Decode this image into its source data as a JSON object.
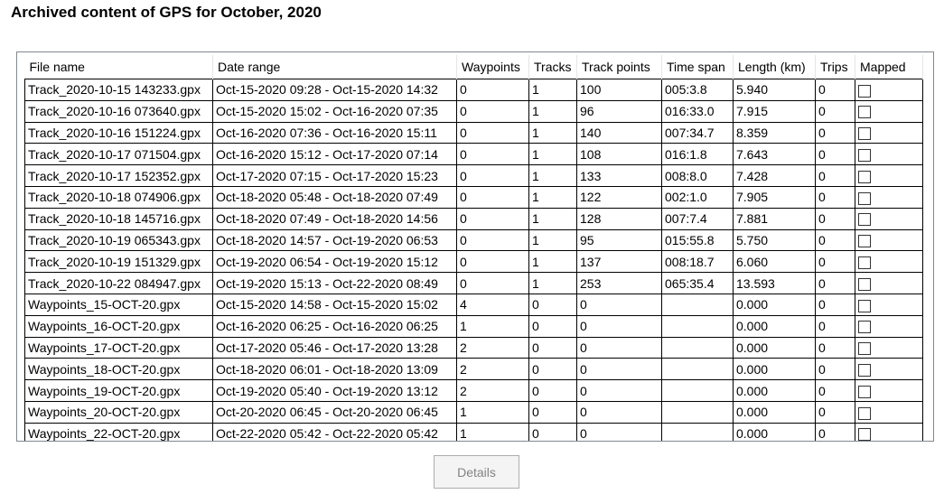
{
  "title": "Archived content of GPS for October, 2020",
  "columns": [
    "File name",
    "Date range",
    "Waypoints",
    "Tracks",
    "Track points",
    "Time span",
    "Length (km)",
    "Trips",
    "Mapped"
  ],
  "rows": [
    {
      "file": "Track_2020-10-15 143233.gpx",
      "range": "Oct-15-2020 09:28 - Oct-15-2020 14:32",
      "waypoints": "0",
      "tracks": "1",
      "points": "100",
      "span": "005:3.8",
      "length": "5.940",
      "trips": "0",
      "mapped": false
    },
    {
      "file": "Track_2020-10-16 073640.gpx",
      "range": "Oct-15-2020 15:02 - Oct-16-2020 07:35",
      "waypoints": "0",
      "tracks": "1",
      "points": "96",
      "span": "016:33.0",
      "length": "7.915",
      "trips": "0",
      "mapped": false
    },
    {
      "file": "Track_2020-10-16 151224.gpx",
      "range": "Oct-16-2020 07:36 - Oct-16-2020 15:11",
      "waypoints": "0",
      "tracks": "1",
      "points": "140",
      "span": "007:34.7",
      "length": "8.359",
      "trips": "0",
      "mapped": false
    },
    {
      "file": "Track_2020-10-17 071504.gpx",
      "range": "Oct-16-2020 15:12 - Oct-17-2020 07:14",
      "waypoints": "0",
      "tracks": "1",
      "points": "108",
      "span": "016:1.8",
      "length": "7.643",
      "trips": "0",
      "mapped": false
    },
    {
      "file": "Track_2020-10-17 152352.gpx",
      "range": "Oct-17-2020 07:15 - Oct-17-2020 15:23",
      "waypoints": "0",
      "tracks": "1",
      "points": "133",
      "span": "008:8.0",
      "length": "7.428",
      "trips": "0",
      "mapped": false
    },
    {
      "file": "Track_2020-10-18 074906.gpx",
      "range": "Oct-18-2020 05:48 - Oct-18-2020 07:49",
      "waypoints": "0",
      "tracks": "1",
      "points": "122",
      "span": "002:1.0",
      "length": "7.905",
      "trips": "0",
      "mapped": false
    },
    {
      "file": "Track_2020-10-18 145716.gpx",
      "range": "Oct-18-2020 07:49 - Oct-18-2020 14:56",
      "waypoints": "0",
      "tracks": "1",
      "points": "128",
      "span": "007:7.4",
      "length": "7.881",
      "trips": "0",
      "mapped": false
    },
    {
      "file": "Track_2020-10-19 065343.gpx",
      "range": "Oct-18-2020 14:57 - Oct-19-2020 06:53",
      "waypoints": "0",
      "tracks": "1",
      "points": "95",
      "span": "015:55.8",
      "length": "5.750",
      "trips": "0",
      "mapped": false
    },
    {
      "file": "Track_2020-10-19 151329.gpx",
      "range": "Oct-19-2020 06:54 - Oct-19-2020 15:12",
      "waypoints": "0",
      "tracks": "1",
      "points": "137",
      "span": "008:18.7",
      "length": "6.060",
      "trips": "0",
      "mapped": false
    },
    {
      "file": "Track_2020-10-22 084947.gpx",
      "range": "Oct-19-2020 15:13 - Oct-22-2020 08:49",
      "waypoints": "0",
      "tracks": "1",
      "points": "253",
      "span": "065:35.4",
      "length": "13.593",
      "trips": "0",
      "mapped": false
    },
    {
      "file": "Waypoints_15-OCT-20.gpx",
      "range": "Oct-15-2020 14:58 - Oct-15-2020 15:02",
      "waypoints": "4",
      "tracks": "0",
      "points": "0",
      "span": "",
      "length": "0.000",
      "trips": "0",
      "mapped": false
    },
    {
      "file": "Waypoints_16-OCT-20.gpx",
      "range": "Oct-16-2020 06:25 - Oct-16-2020 06:25",
      "waypoints": "1",
      "tracks": "0",
      "points": "0",
      "span": "",
      "length": "0.000",
      "trips": "0",
      "mapped": false
    },
    {
      "file": "Waypoints_17-OCT-20.gpx",
      "range": "Oct-17-2020 05:46 - Oct-17-2020 13:28",
      "waypoints": "2",
      "tracks": "0",
      "points": "0",
      "span": "",
      "length": "0.000",
      "trips": "0",
      "mapped": false
    },
    {
      "file": "Waypoints_18-OCT-20.gpx",
      "range": "Oct-18-2020 06:01 - Oct-18-2020 13:09",
      "waypoints": "2",
      "tracks": "0",
      "points": "0",
      "span": "",
      "length": "0.000",
      "trips": "0",
      "mapped": false
    },
    {
      "file": "Waypoints_19-OCT-20.gpx",
      "range": "Oct-19-2020 05:40 - Oct-19-2020 13:12",
      "waypoints": "2",
      "tracks": "0",
      "points": "0",
      "span": "",
      "length": "0.000",
      "trips": "0",
      "mapped": false
    },
    {
      "file": "Waypoints_20-OCT-20.gpx",
      "range": "Oct-20-2020 06:45 - Oct-20-2020 06:45",
      "waypoints": "1",
      "tracks": "0",
      "points": "0",
      "span": "",
      "length": "0.000",
      "trips": "0",
      "mapped": false
    },
    {
      "file": "Waypoints_22-OCT-20.gpx",
      "range": "Oct-22-2020 05:42 - Oct-22-2020 05:42",
      "waypoints": "1",
      "tracks": "0",
      "points": "0",
      "span": "",
      "length": "0.000",
      "trips": "0",
      "mapped": false
    }
  ],
  "details_button": "Details",
  "colors": {
    "grid_border": "#828790",
    "button_bg": "#f4f4f4",
    "button_text_disabled": "#838383"
  }
}
